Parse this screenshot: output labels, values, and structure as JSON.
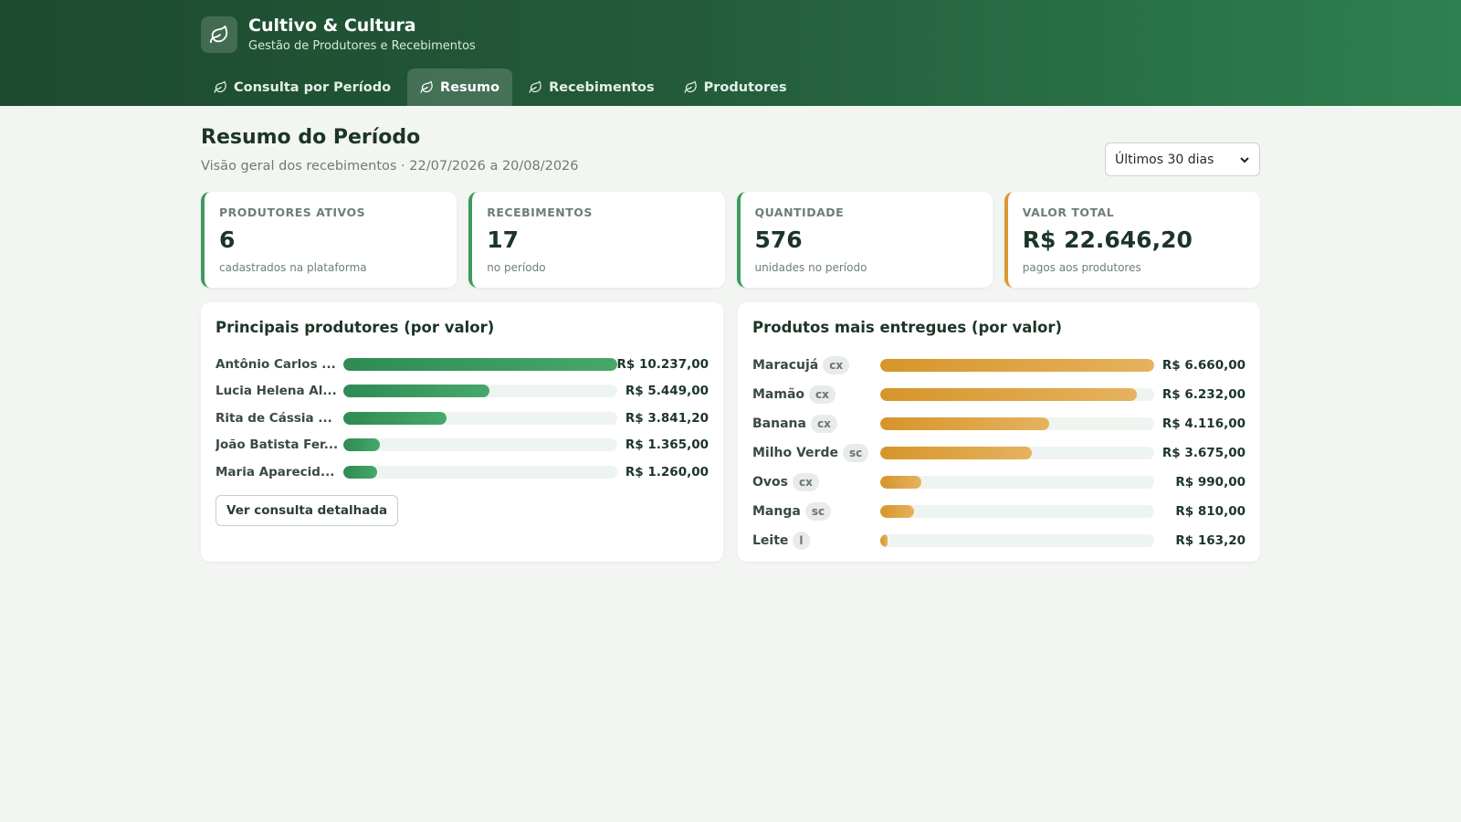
{
  "app": {
    "title": "Cultivo & Cultura",
    "subtitle": "Gestão de Produtores e Recebimentos",
    "logo_icon": "leaf-icon"
  },
  "nav": {
    "items": [
      {
        "label": "Consulta por Período",
        "icon": "leaf-icon",
        "active": false
      },
      {
        "label": "Resumo",
        "icon": "leaf-icon",
        "active": true
      },
      {
        "label": "Recebimentos",
        "icon": "leaf-icon",
        "active": false
      },
      {
        "label": "Produtores",
        "icon": "leaf-icon",
        "active": false
      }
    ]
  },
  "page": {
    "title": "Resumo do Período",
    "subtitle": "Visão geral dos recebimentos · 22/07/2026 a 20/08/2026",
    "period_select": {
      "value": "Últimos 30 dias"
    }
  },
  "stats": [
    {
      "label": "PRODUTORES ATIVOS",
      "value": "6",
      "note": "cadastrados na plataforma"
    },
    {
      "label": "RECEBIMENTOS",
      "value": "17",
      "note": "no período"
    },
    {
      "label": "QUANTIDADE",
      "value": "576",
      "note": "unidades no período"
    },
    {
      "label": "VALOR TOTAL",
      "value": "R$ 22.646,20",
      "note": "pagos aos produtores"
    }
  ],
  "top_producers": {
    "title": "Principais produtores (por valor)",
    "items": [
      {
        "name": "Antônio Carlos ...",
        "value": "R$ 10.237,00",
        "fraction": 1.0
      },
      {
        "name": "Lucia Helena Al...",
        "value": "R$ 5.449,00",
        "fraction": 0.532
      },
      {
        "name": "Rita de Cássia ...",
        "value": "R$ 3.841,20",
        "fraction": 0.375
      },
      {
        "name": "João Batista Fer...",
        "value": "R$ 1.365,00",
        "fraction": 0.133
      },
      {
        "name": "Maria Aparecid...",
        "value": "R$ 1.260,00",
        "fraction": 0.123
      }
    ],
    "button_label": "Ver consulta detalhada"
  },
  "top_products": {
    "title": "Produtos mais entregues (por valor)",
    "items": [
      {
        "name": "Maracujá",
        "unit": "cx",
        "value": "R$ 6.660,00",
        "fraction": 1.0
      },
      {
        "name": "Mamão",
        "unit": "cx",
        "value": "R$ 6.232,00",
        "fraction": 0.936
      },
      {
        "name": "Banana",
        "unit": "cx",
        "value": "R$ 4.116,00",
        "fraction": 0.618
      },
      {
        "name": "Milho Verde",
        "unit": "sc",
        "value": "R$ 3.675,00",
        "fraction": 0.552
      },
      {
        "name": "Ovos",
        "unit": "cx",
        "value": "R$ 990,00",
        "fraction": 0.149
      },
      {
        "name": "Manga",
        "unit": "sc",
        "value": "R$ 810,00",
        "fraction": 0.122
      },
      {
        "name": "Leite",
        "unit": "l",
        "value": "R$ 163,20",
        "fraction": 0.025
      }
    ]
  },
  "colors": {
    "header_dark": "#1d4a30",
    "header_light": "#2e8050",
    "accent_green": "#3d9a60",
    "accent_gold": "#d99a2e"
  }
}
